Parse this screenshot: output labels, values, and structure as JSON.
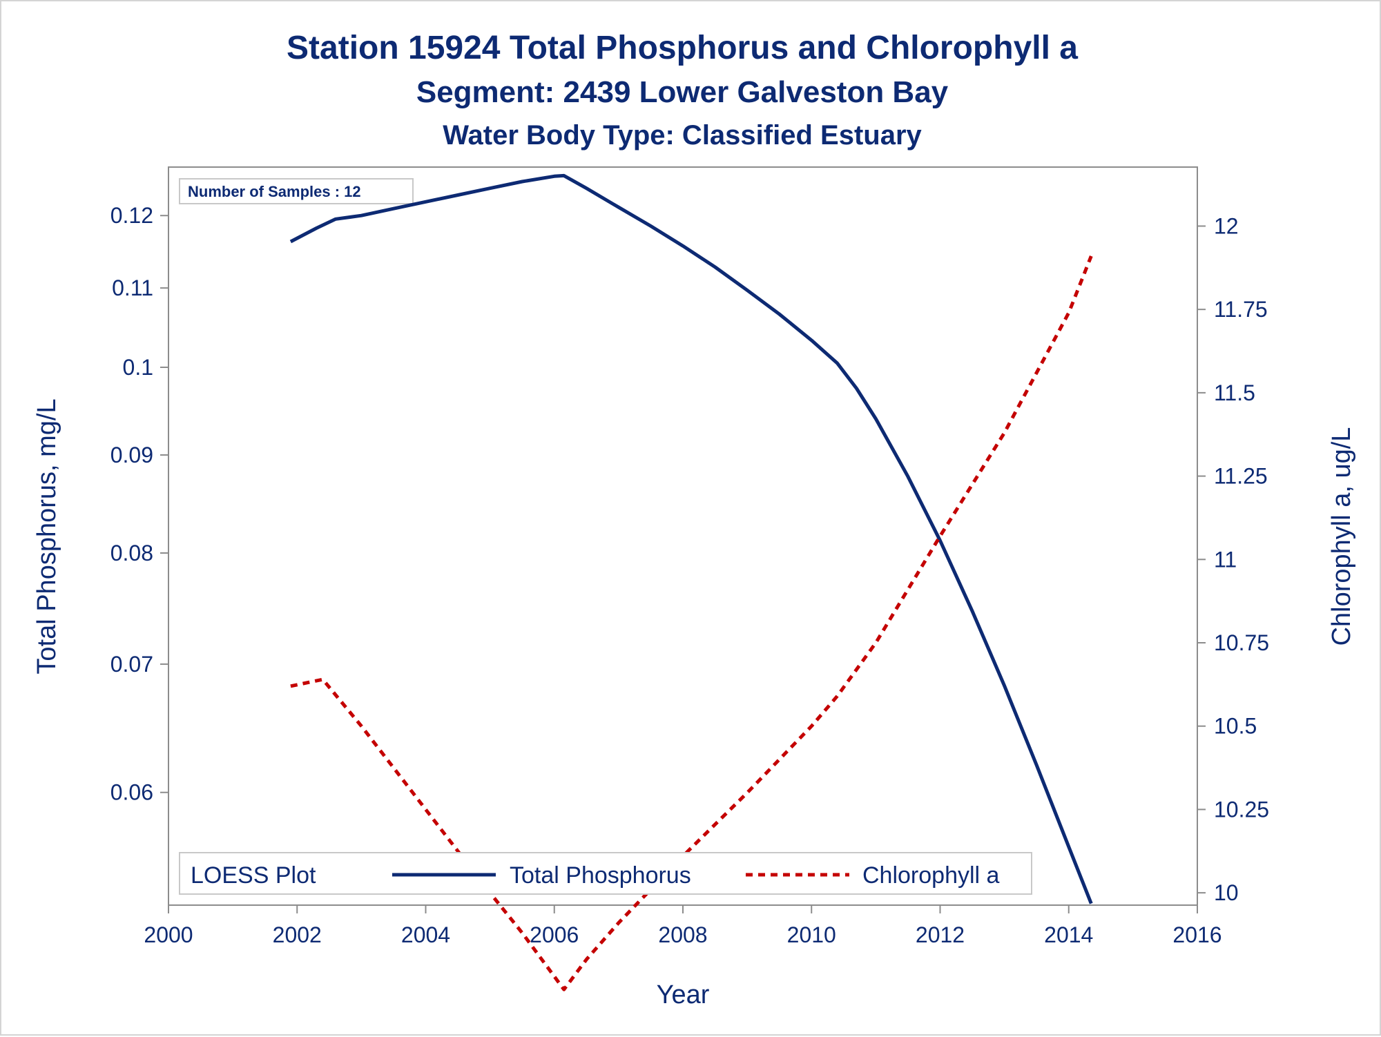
{
  "titles": {
    "line1": "Station 15924   Total Phosphorus and Chlorophyll a",
    "line2": "Segment: 2439  Lower Galveston Bay",
    "line3": "Water Body Type: Classified Estuary"
  },
  "inset": {
    "label": "Number of Samples : 12"
  },
  "legend": {
    "title": "LOESS Plot",
    "entries": [
      "Total Phosphorus",
      "Chlorophyll a"
    ]
  },
  "colors": {
    "phosphorus": "#0d2a73",
    "chlorophyll": "#c40000",
    "axis": "#8c8c8c",
    "text": "#0d2a73"
  },
  "chart_data": {
    "type": "line",
    "xlabel": "Year",
    "ylabel_left": "Total Phosphorus, mg/L",
    "ylabel_right": "Chlorophyll a, ug/L",
    "left_axis_scale": "log",
    "xlim": [
      2000,
      2016
    ],
    "ylim_left": [
      0.0524,
      0.1272
    ],
    "ylim_right": [
      9.963,
      12.177
    ],
    "x_ticks": [
      2000,
      2002,
      2004,
      2006,
      2008,
      2010,
      2012,
      2014,
      2016
    ],
    "y_ticks_left": [
      0.06,
      0.07,
      0.08,
      0.09,
      0.1,
      0.11,
      0.12
    ],
    "y_ticks_left_labels": [
      "0.06",
      "0.07",
      "0.08",
      "0.09",
      "0.1",
      "0.11",
      "0.12"
    ],
    "y_ticks_right": [
      10,
      10.25,
      10.5,
      10.75,
      11,
      11.25,
      11.5,
      11.75,
      12
    ],
    "y_ticks_right_labels": [
      "10",
      "10.25",
      "10.5",
      "10.75",
      "11",
      "11.25",
      "11.5",
      "11.75",
      "12"
    ],
    "grid": false,
    "legend_position": "bottom-inside",
    "series": [
      {
        "name": "Total Phosphorus",
        "axis": "left",
        "style": "solid",
        "x": [
          2001.9,
          2002.3,
          2002.6,
          2003.0,
          2003.5,
          2004.0,
          2004.5,
          2005.0,
          2005.5,
          2006.0,
          2006.15,
          2006.5,
          2007.0,
          2007.5,
          2008.0,
          2008.5,
          2009.0,
          2009.5,
          2010.0,
          2010.4,
          2010.7,
          2011.0,
          2011.5,
          2012.0,
          2012.5,
          2013.0,
          2013.5,
          2014.0,
          2014.35
        ],
        "y": [
          0.1163,
          0.1182,
          0.1195,
          0.12,
          0.121,
          0.122,
          0.123,
          0.124,
          0.125,
          0.1258,
          0.1259,
          0.124,
          0.1212,
          0.1185,
          0.1157,
          0.1128,
          0.1097,
          0.1066,
          0.1033,
          0.1005,
          0.0975,
          0.094,
          0.0877,
          0.0812,
          0.0746,
          0.0682,
          0.062,
          0.0562,
          0.0525
        ]
      },
      {
        "name": "Chlorophyll a",
        "axis": "right",
        "style": "dashed",
        "x": [
          2001.9,
          2002.4,
          2003.0,
          2004.0,
          2005.0,
          2005.5,
          2006.15,
          2006.5,
          2007.0,
          2008.0,
          2009.0,
          2010.0,
          2010.4,
          2011.0,
          2012.0,
          2013.0,
          2014.0,
          2014.35
        ],
        "y": [
          10.62,
          10.64,
          10.5,
          10.25,
          10.0,
          9.88,
          9.71,
          9.8,
          9.91,
          10.11,
          10.3,
          10.5,
          10.59,
          10.75,
          11.07,
          11.38,
          11.74,
          11.91
        ]
      }
    ]
  }
}
